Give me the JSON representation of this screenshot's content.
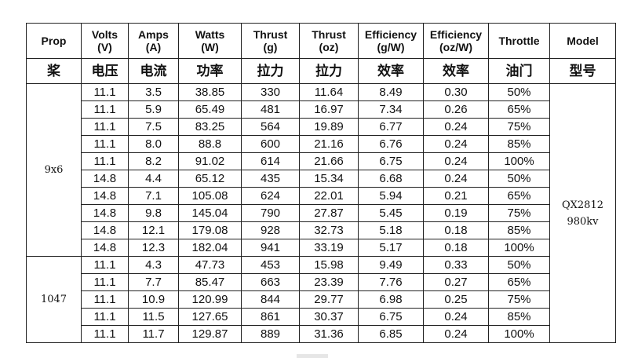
{
  "header": {
    "prop": {
      "en": "Prop",
      "zh": "桨"
    },
    "volts": {
      "en1": "Volts",
      "en2": "(V)",
      "zh": "电压"
    },
    "amps": {
      "en1": "Amps",
      "en2": "(A)",
      "zh": "电流"
    },
    "watts": {
      "en1": "Watts",
      "en2": "(W)",
      "zh": "功率"
    },
    "thrust_g": {
      "en1": "Thrust",
      "en2": "(g)",
      "zh": "拉力"
    },
    "thrust_oz": {
      "en1": "Thrust",
      "en2": "(oz)",
      "zh": "拉力"
    },
    "eff_g": {
      "en1": "Efficiency",
      "en2": "(g/W)",
      "zh": "效率"
    },
    "eff_oz": {
      "en1": "Efficiency",
      "en2": "(oz/W)",
      "zh": "效率"
    },
    "throttle": {
      "en": "Throttle",
      "zh": "油门"
    },
    "model": {
      "en": "Model",
      "zh": "型号"
    }
  },
  "model_label": {
    "line1": "QX2812",
    "line2": "980kv"
  },
  "groups": [
    {
      "prop": "9x6",
      "rows": [
        [
          "11.1",
          "3.5",
          "38.85",
          "330",
          "11.64",
          "8.49",
          "0.30",
          "50%"
        ],
        [
          "11.1",
          "5.9",
          "65.49",
          "481",
          "16.97",
          "7.34",
          "0.26",
          "65%"
        ],
        [
          "11.1",
          "7.5",
          "83.25",
          "564",
          "19.89",
          "6.77",
          "0.24",
          "75%"
        ],
        [
          "11.1",
          "8.0",
          "88.8",
          "600",
          "21.16",
          "6.76",
          "0.24",
          "85%"
        ],
        [
          "11.1",
          "8.2",
          "91.02",
          "614",
          "21.66",
          "6.75",
          "0.24",
          "100%"
        ],
        [
          "14.8",
          "4.4",
          "65.12",
          "435",
          "15.34",
          "6.68",
          "0.24",
          "50%"
        ],
        [
          "14.8",
          "7.1",
          "105.08",
          "624",
          "22.01",
          "5.94",
          "0.21",
          "65%"
        ],
        [
          "14.8",
          "9.8",
          "145.04",
          "790",
          "27.87",
          "5.45",
          "0.19",
          "75%"
        ],
        [
          "14.8",
          "12.1",
          "179.08",
          "928",
          "32.73",
          "5.18",
          "0.18",
          "85%"
        ],
        [
          "14.8",
          "12.3",
          "182.04",
          "941",
          "33.19",
          "5.17",
          "0.18",
          "100%"
        ]
      ]
    },
    {
      "prop": "1047",
      "rows": [
        [
          "11.1",
          "4.3",
          "47.73",
          "453",
          "15.98",
          "9.49",
          "0.33",
          "50%"
        ],
        [
          "11.1",
          "7.7",
          "85.47",
          "663",
          "23.39",
          "7.76",
          "0.27",
          "65%"
        ],
        [
          "11.1",
          "10.9",
          "120.99",
          "844",
          "29.77",
          "6.98",
          "0.25",
          "75%"
        ],
        [
          "11.1",
          "11.5",
          "127.65",
          "861",
          "30.37",
          "6.75",
          "0.24",
          "85%"
        ],
        [
          "11.1",
          "11.7",
          "129.87",
          "889",
          "31.36",
          "6.85",
          "0.24",
          "100%"
        ]
      ]
    }
  ]
}
